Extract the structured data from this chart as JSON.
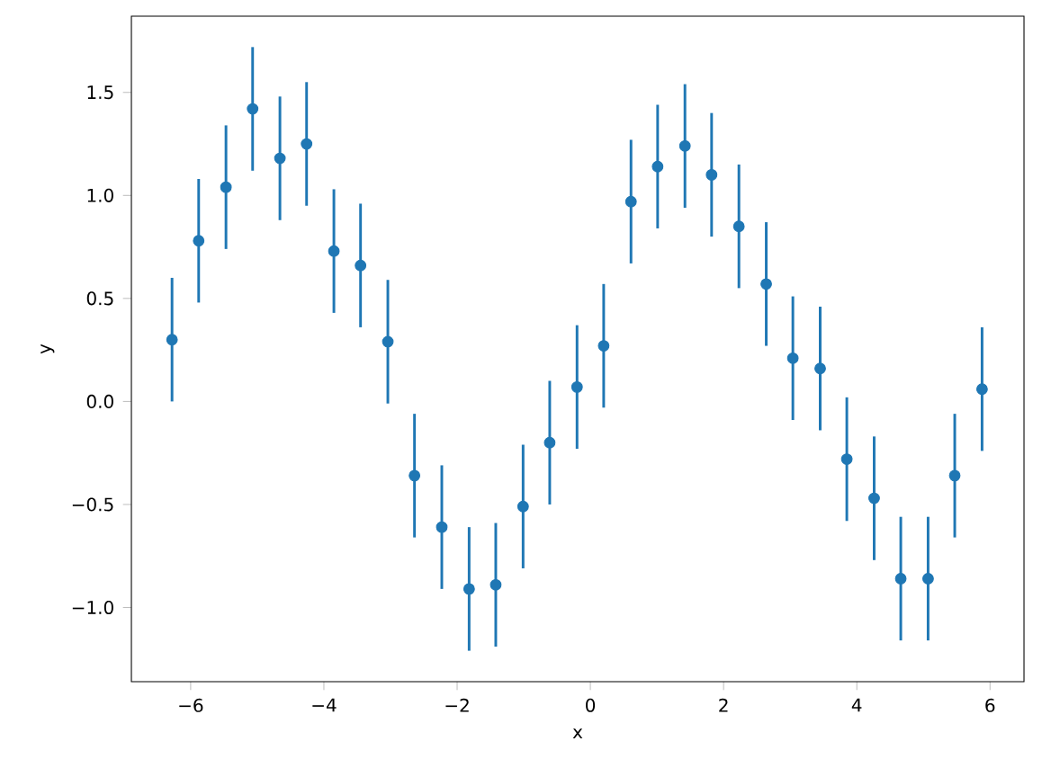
{
  "chart_data": {
    "type": "scatter",
    "xlabel": "x",
    "ylabel": "y",
    "marker": "circle",
    "color": "#1f77b4",
    "x": [
      -6.28,
      -5.88,
      -5.47,
      -5.07,
      -4.66,
      -4.26,
      -3.85,
      -3.45,
      -3.04,
      -2.64,
      -2.23,
      -1.82,
      -1.42,
      -1.01,
      -0.61,
      -0.2,
      0.2,
      0.61,
      1.01,
      1.42,
      1.82,
      2.23,
      2.64,
      3.04,
      3.45,
      3.85,
      4.26,
      4.66,
      5.07,
      5.47,
      5.88
    ],
    "values": [
      0.3,
      0.78,
      1.04,
      1.42,
      1.18,
      1.25,
      0.73,
      0.66,
      0.29,
      -0.36,
      -0.61,
      -0.91,
      -0.89,
      -0.51,
      -0.2,
      0.07,
      0.27,
      0.97,
      1.14,
      1.24,
      1.1,
      0.85,
      0.57,
      0.21,
      0.16,
      -0.28,
      -0.47,
      -0.86,
      -0.86,
      -0.36,
      0.06
    ],
    "errors": [
      0.3,
      0.3,
      0.3,
      0.3,
      0.3,
      0.3,
      0.3,
      0.3,
      0.3,
      0.3,
      0.3,
      0.3,
      0.3,
      0.3,
      0.3,
      0.3,
      0.3,
      0.3,
      0.3,
      0.3,
      0.3,
      0.3,
      0.3,
      0.3,
      0.3,
      0.3,
      0.3,
      0.3,
      0.3,
      0.3,
      0.3
    ],
    "xlim": [
      -6.89,
      6.51
    ],
    "ylim": [
      -1.36,
      1.87
    ],
    "xticks": [
      {
        "value": -6,
        "label": "−6"
      },
      {
        "value": -4,
        "label": "−4"
      },
      {
        "value": -2,
        "label": "−2"
      },
      0,
      2,
      4,
      6
    ],
    "yticks": [
      {
        "value": -1.0,
        "label": "−1.0"
      },
      {
        "value": -0.5,
        "label": "−0.5"
      },
      {
        "value": 0.0,
        "label": "0.0"
      },
      {
        "value": 0.5,
        "label": "0.5"
      },
      {
        "value": 1.0,
        "label": "1.0"
      },
      {
        "value": 1.5,
        "label": "1.5"
      }
    ],
    "grid": false
  }
}
